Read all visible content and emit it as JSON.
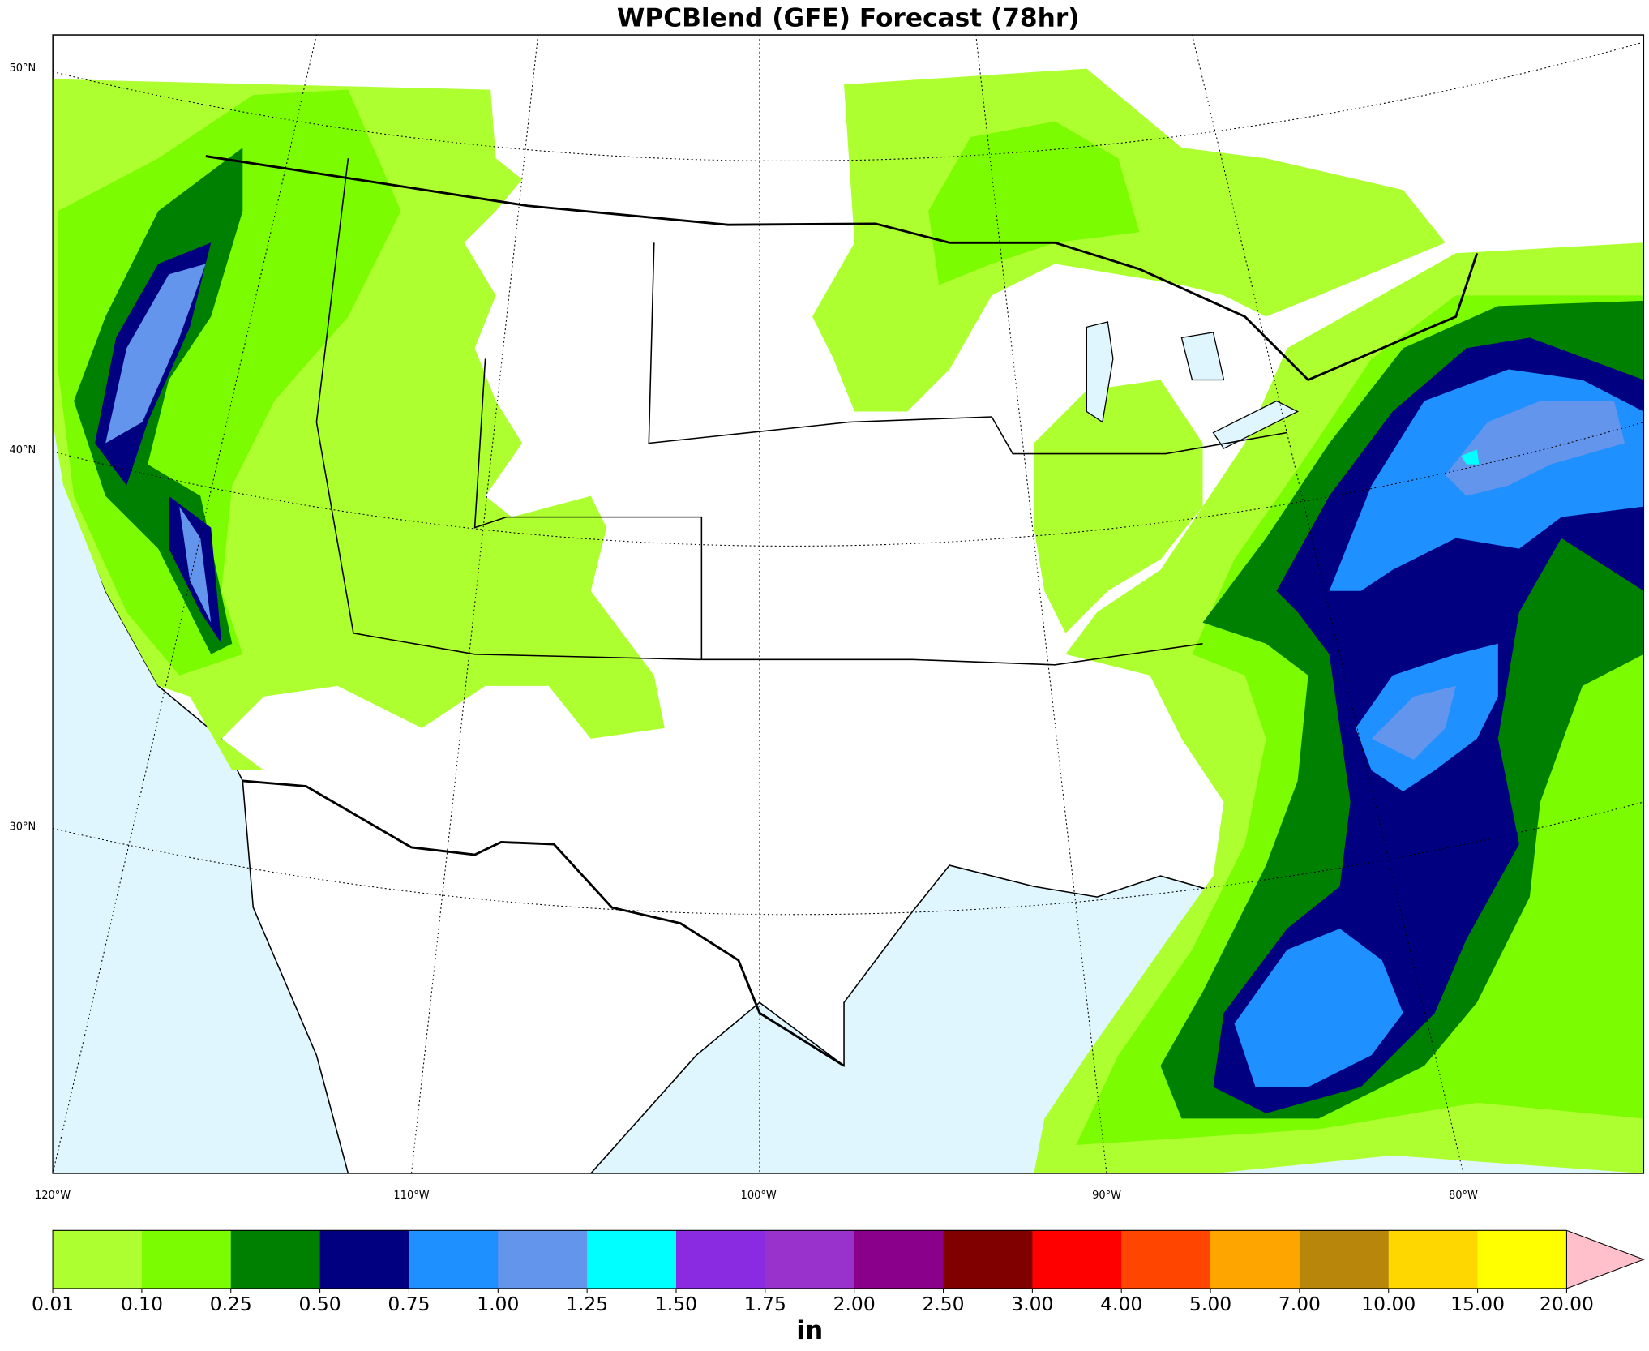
{
  "title": "WPCBlend (GFE) Forecast (78hr)",
  "lat_labels": [
    "50°N",
    "40°N",
    "30°N"
  ],
  "lon_labels": [
    "120°W",
    "110°W",
    "100°W",
    "90°W",
    "80°W"
  ],
  "colorbar": {
    "label": "in",
    "colors": [
      "#adff2f",
      "#7cfc00",
      "#008000",
      "#000080",
      "#1e90ff",
      "#6495ed",
      "#00ffff",
      "#8a2be2",
      "#9932cc",
      "#8b008b",
      "#800000",
      "#ff0000",
      "#ff4500",
      "#ffa500",
      "#b8860b",
      "#ffd700",
      "#ffff00"
    ],
    "extend_color": "#ffc0cb",
    "ticks": [
      0.01,
      {
        "value": 0.1,
        "label": "0.10"
      },
      0.25,
      {
        "value": 0.5,
        "label": "0.50"
      },
      0.75,
      {
        "value": 1,
        "label": "1.00"
      },
      1.25,
      {
        "value": 1.5,
        "label": "1.50"
      },
      1.75,
      {
        "value": 2,
        "label": "2.00"
      },
      {
        "value": 2.5,
        "label": "2.50"
      },
      {
        "value": 3,
        "label": "3.00"
      },
      {
        "value": 4,
        "label": "4.00"
      },
      {
        "value": 5,
        "label": "5.00"
      },
      {
        "value": 7,
        "label": "7.00"
      },
      {
        "value": 10,
        "label": "10.00"
      },
      {
        "value": 15,
        "label": "15.00"
      },
      {
        "value": 20,
        "label": "20.00"
      }
    ]
  }
}
